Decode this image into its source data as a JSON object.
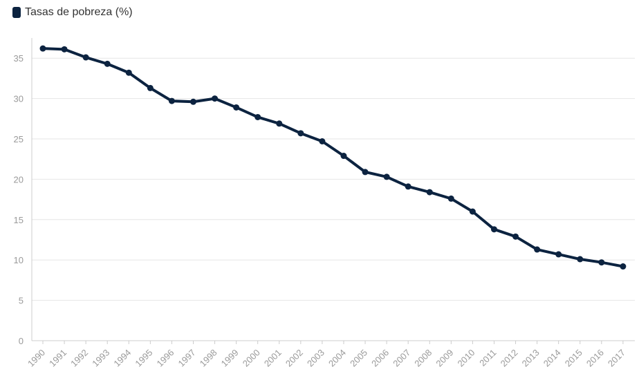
{
  "colors": {
    "line": "#0c2340",
    "grid": "#e6e6e6",
    "axis": "#cccccc",
    "tick_text": "#9a9a9a"
  },
  "chart_data": {
    "type": "line",
    "title": "",
    "xlabel": "",
    "ylabel": "",
    "ylim": [
      0,
      37.5
    ],
    "yticks": [
      0,
      5,
      10,
      15,
      20,
      25,
      30,
      35
    ],
    "grid": true,
    "legend_position": "top-left",
    "x": [
      "1990",
      "1991",
      "1992",
      "1993",
      "1994",
      "1995",
      "1996",
      "1997",
      "1998",
      "1999",
      "2000",
      "2001",
      "2002",
      "2003",
      "2004",
      "2005",
      "2006",
      "2007",
      "2008",
      "2009",
      "2010",
      "2011",
      "2012",
      "2013",
      "2014",
      "2015",
      "2016",
      "2017"
    ],
    "series": [
      {
        "name": "Tasas de pobreza (%)",
        "color": "#0c2340",
        "values": [
          36.2,
          36.1,
          35.1,
          34.3,
          33.2,
          31.3,
          29.7,
          29.6,
          30.0,
          28.9,
          27.7,
          26.9,
          25.7,
          24.7,
          22.9,
          20.9,
          20.3,
          19.1,
          18.4,
          17.6,
          16.0,
          13.8,
          12.9,
          11.3,
          10.7,
          10.1,
          9.7,
          9.2
        ]
      }
    ]
  }
}
